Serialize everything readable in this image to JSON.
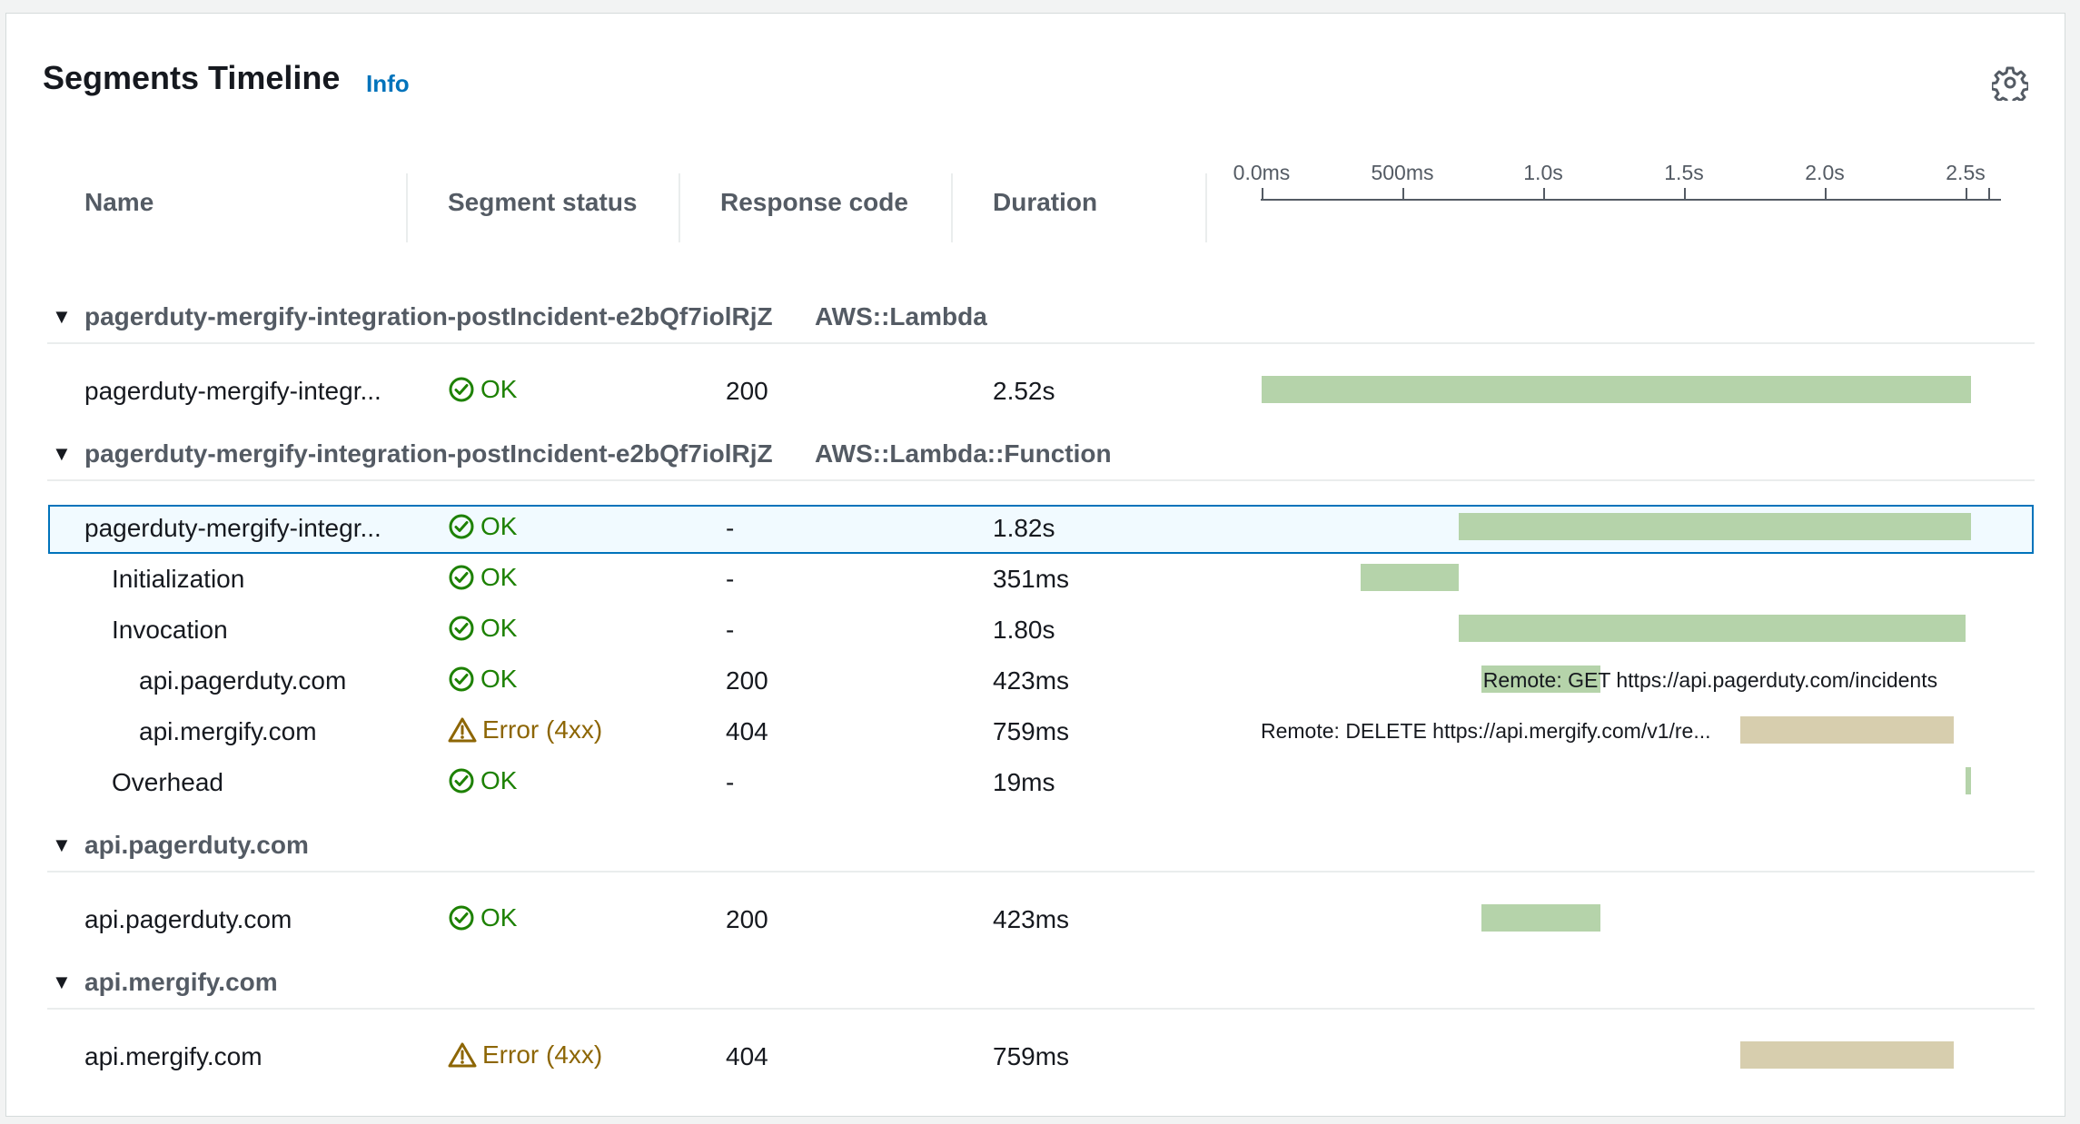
{
  "panel": {
    "title": "Segments Timeline",
    "info_link": "Info",
    "settings_icon": "gear-icon"
  },
  "columns": {
    "name": "Name",
    "status": "Segment status",
    "response": "Response code",
    "duration": "Duration"
  },
  "timeline_axis": {
    "ticks": [
      "0.0ms",
      "500ms",
      "1.0s",
      "1.5s",
      "2.0s",
      "2.5s"
    ],
    "max_seconds": 2.6
  },
  "groups": [
    {
      "name": "pagerduty-mergify-integration-postIncident-e2bQf7iolRjZ",
      "type": "AWS::Lambda",
      "rows": [
        {
          "name": "pagerduty-mergify-integr...",
          "indent": 0,
          "status": "OK",
          "status_kind": "ok",
          "code": "200",
          "duration": "2.52s",
          "start_s": 0.0,
          "dur_s": 2.52,
          "color": "#b5d3aa"
        }
      ]
    },
    {
      "name": "pagerduty-mergify-integration-postIncident-e2bQf7iolRjZ",
      "type": "AWS::Lambda::Function",
      "rows": [
        {
          "name": "pagerduty-mergify-integr...",
          "indent": 0,
          "status": "OK",
          "status_kind": "ok",
          "code": "-",
          "duration": "1.82s",
          "start_s": 0.7,
          "dur_s": 1.82,
          "color": "#b5d3aa",
          "selected": true
        },
        {
          "name": "Initialization",
          "indent": 1,
          "status": "OK",
          "status_kind": "ok",
          "code": "-",
          "duration": "351ms",
          "start_s": 0.35,
          "dur_s": 0.351,
          "color": "#b5d3aa"
        },
        {
          "name": "Invocation",
          "indent": 1,
          "status": "OK",
          "status_kind": "ok",
          "code": "-",
          "duration": "1.80s",
          "start_s": 0.7,
          "dur_s": 1.8,
          "color": "#b5d3aa"
        },
        {
          "name": "api.pagerduty.com",
          "indent": 2,
          "status": "OK",
          "status_kind": "ok",
          "code": "200",
          "duration": "423ms",
          "start_s": 0.78,
          "dur_s": 0.423,
          "color": "#b5d3aa",
          "remote_label": "Remote: GET https://api.pagerduty.com/incidents",
          "remote_side": "inside"
        },
        {
          "name": "api.mergify.com",
          "indent": 2,
          "status": "Error (4xx)",
          "status_kind": "err",
          "code": "404",
          "duration": "759ms",
          "start_s": 1.7,
          "dur_s": 0.759,
          "color": "#d7ceae",
          "remote_label": "Remote: DELETE https://api.mergify.com/v1/re...",
          "remote_side": "left"
        },
        {
          "name": "Overhead",
          "indent": 1,
          "status": "OK",
          "status_kind": "ok",
          "code": "-",
          "duration": "19ms",
          "start_s": 2.5,
          "dur_s": 0.019,
          "color": "#b5d3aa"
        }
      ]
    },
    {
      "name": "api.pagerduty.com",
      "type": "",
      "rows": [
        {
          "name": "api.pagerduty.com",
          "indent": 0,
          "status": "OK",
          "status_kind": "ok",
          "code": "200",
          "duration": "423ms",
          "start_s": 0.78,
          "dur_s": 0.423,
          "color": "#b5d3aa"
        }
      ]
    },
    {
      "name": "api.mergify.com",
      "type": "",
      "rows": [
        {
          "name": "api.mergify.com",
          "indent": 0,
          "status": "Error (4xx)",
          "status_kind": "err",
          "code": "404",
          "duration": "759ms",
          "start_s": 1.7,
          "dur_s": 0.759,
          "color": "#d7ceae"
        }
      ]
    }
  ]
}
